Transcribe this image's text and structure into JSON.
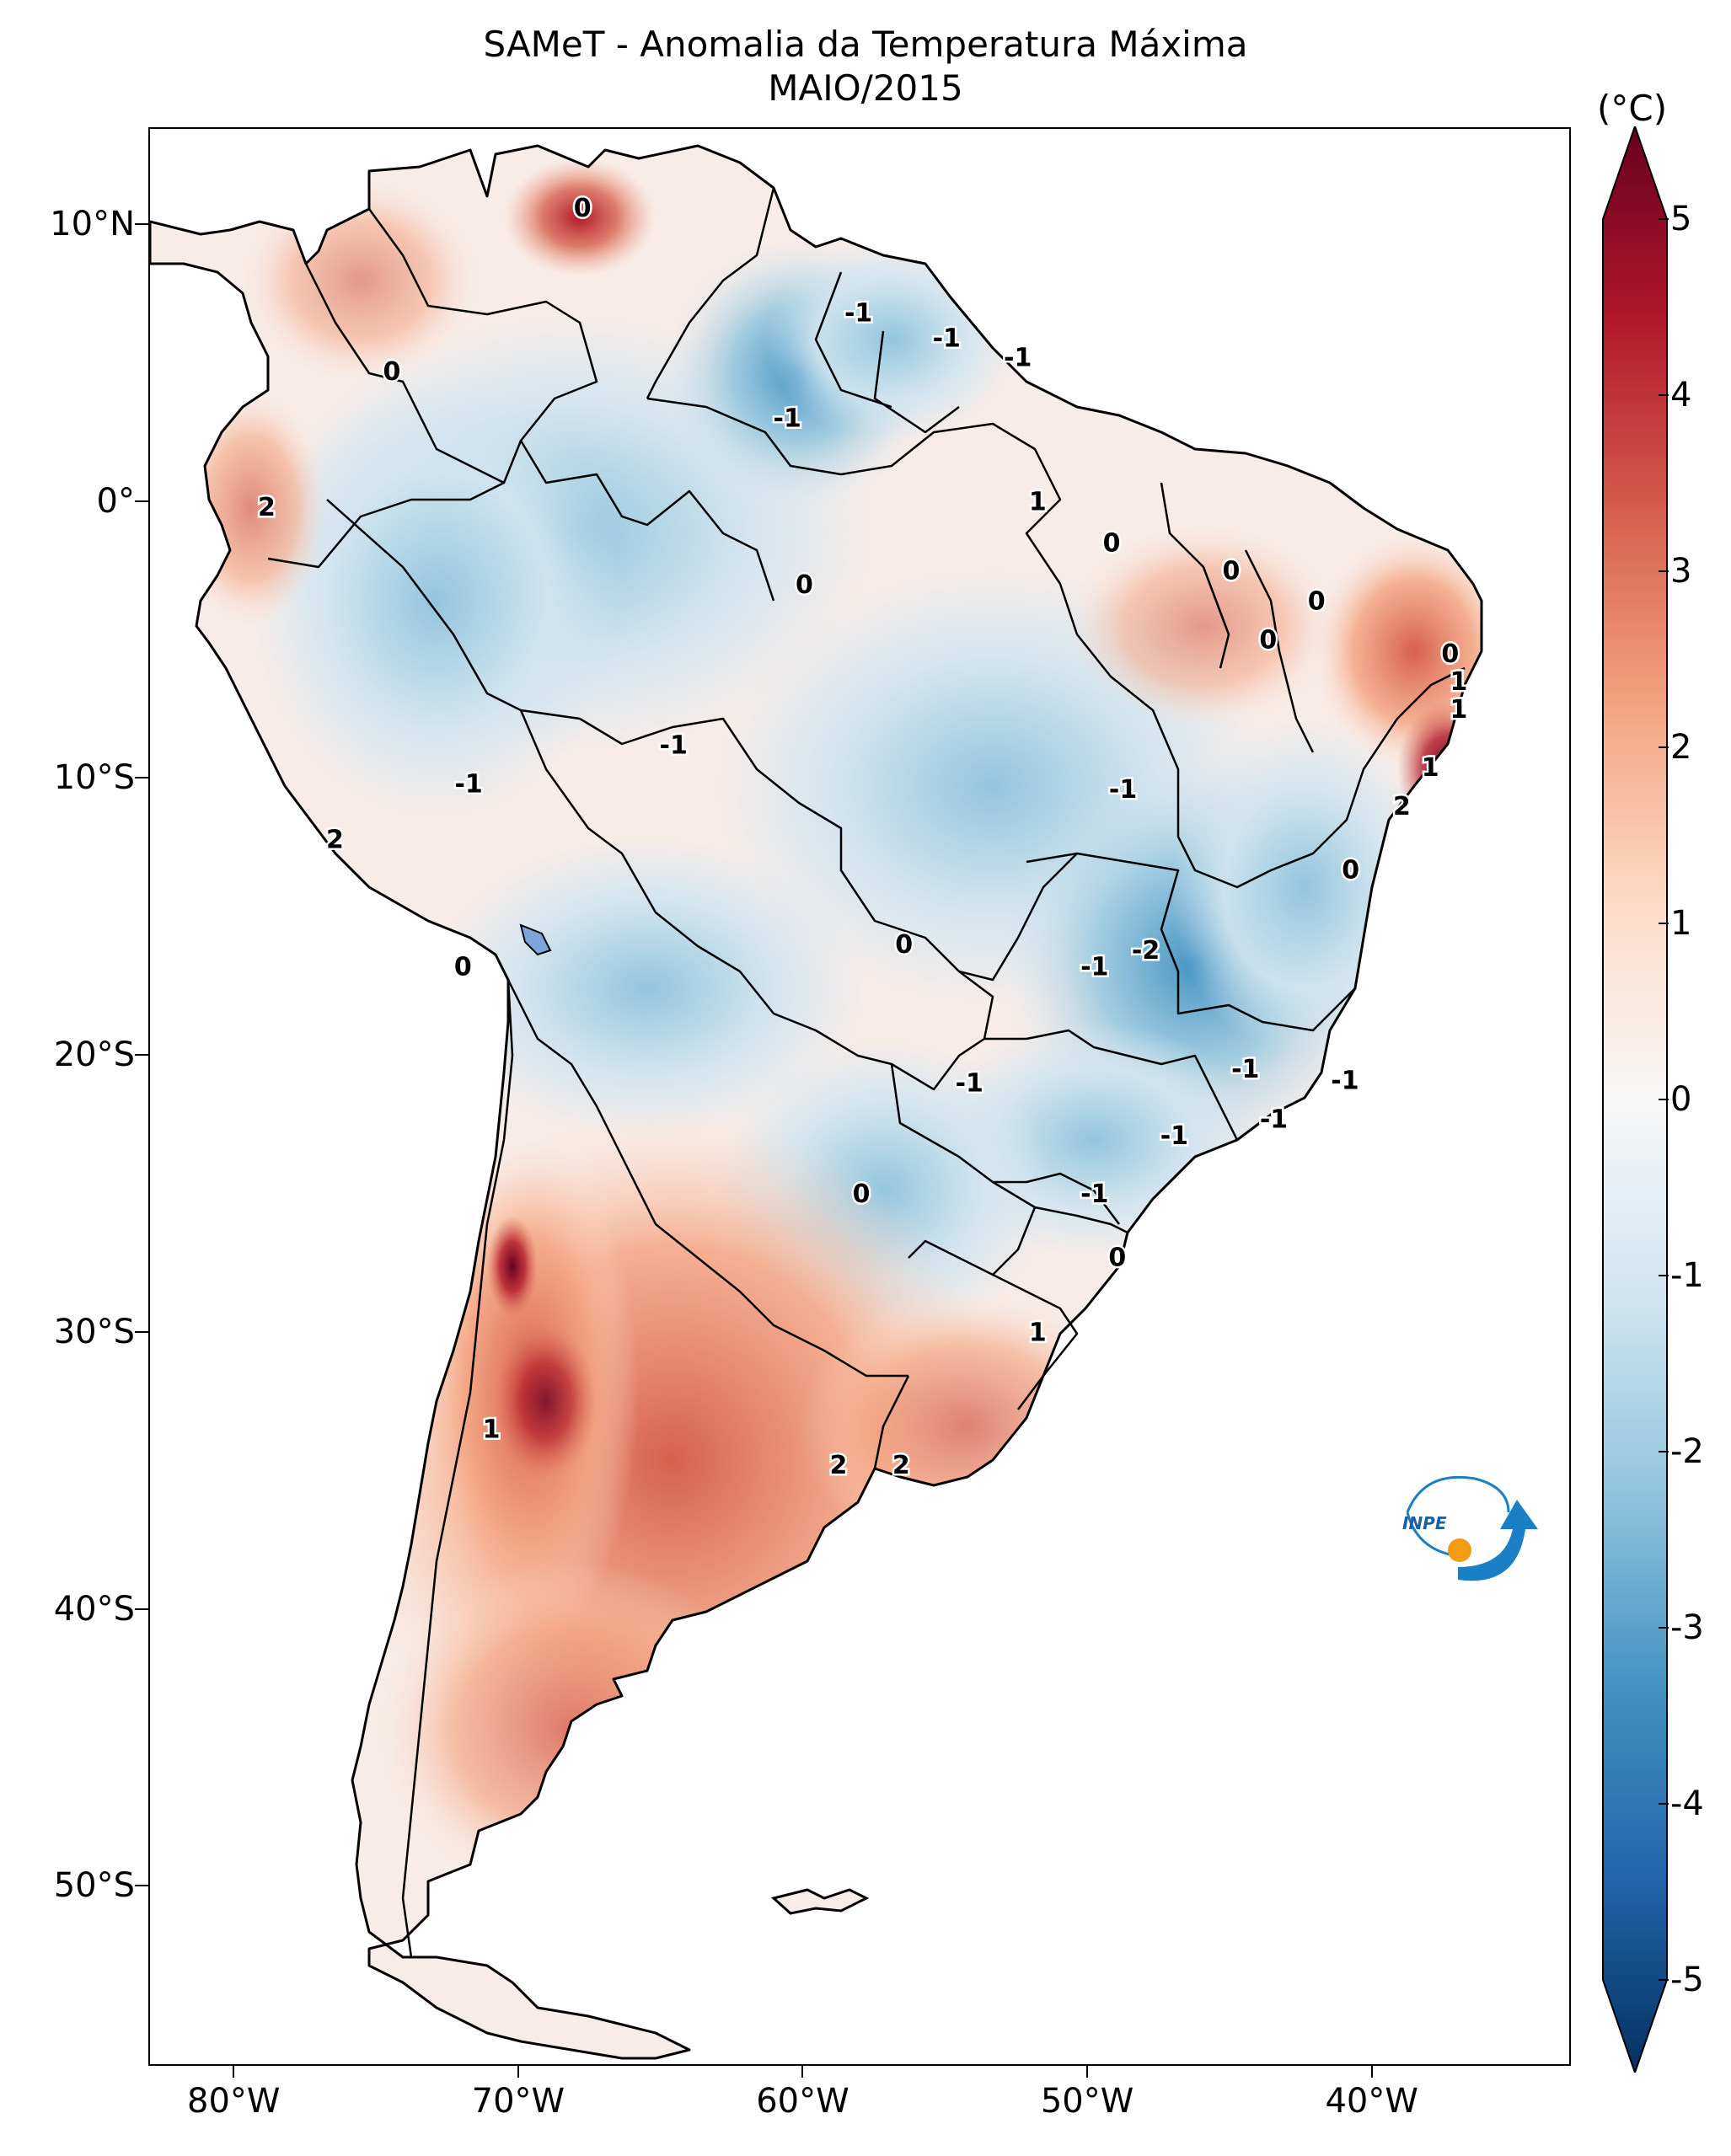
{
  "title": {
    "line1": "SAMeT - Anomalia da Temperatura Máxima",
    "line2": "MAIO/2015"
  },
  "axes": {
    "latitude_ticks": [
      "10°N",
      "0°",
      "10°S",
      "20°S",
      "30°S",
      "40°S",
      "50°S"
    ],
    "longitude_ticks": [
      "80°W",
      "70°W",
      "60°W",
      "50°W",
      "40°W"
    ],
    "lat_values": [
      10,
      0,
      -10,
      -20,
      -30,
      -40,
      -50
    ],
    "lon_values": [
      -80,
      -70,
      -60,
      -50,
      -40
    ],
    "extent": {
      "lon_min": -83,
      "lon_max": -33,
      "lat_min": -56.5,
      "lat_max": 13.5
    }
  },
  "colorbar": {
    "unit": "(°C)",
    "ticks": [
      "5",
      "4",
      "3",
      "2",
      "1",
      "0",
      "-1",
      "-2",
      "-3",
      "-4",
      "-5"
    ],
    "tick_values": [
      5,
      4,
      3,
      2,
      1,
      0,
      -1,
      -2,
      -3,
      -4,
      -5
    ],
    "range": [
      -5,
      5
    ],
    "colors": {
      "max": "#67001f",
      "high": "#b2182b",
      "warm": "#d6604d",
      "light_warm": "#f4a582",
      "pale_warm": "#fddbc7",
      "neutral": "#f7f7f7",
      "pale_cool": "#d1e5f0",
      "light_cool": "#92c5de",
      "cool": "#4393c3",
      "low": "#2166ac",
      "min": "#053061"
    }
  },
  "contour_labels": [
    {
      "text": "0",
      "lon": -67.8,
      "lat": 10.6
    },
    {
      "text": "-1",
      "lon": -58.1,
      "lat": 6.8
    },
    {
      "text": "-1",
      "lon": -55.0,
      "lat": 5.9
    },
    {
      "text": "-1",
      "lon": -52.5,
      "lat": 5.2
    },
    {
      "text": "0",
      "lon": -74.5,
      "lat": 4.7
    },
    {
      "text": "-1",
      "lon": -60.6,
      "lat": 3.0
    },
    {
      "text": "2",
      "lon": -78.9,
      "lat": -0.2
    },
    {
      "text": "1",
      "lon": -51.8,
      "lat": 0.0
    },
    {
      "text": "0",
      "lon": -49.2,
      "lat": -1.5
    },
    {
      "text": "0",
      "lon": -60.0,
      "lat": -3.0
    },
    {
      "text": "0",
      "lon": -45.0,
      "lat": -2.5
    },
    {
      "text": "0",
      "lon": -42.0,
      "lat": -3.6
    },
    {
      "text": "0",
      "lon": -43.7,
      "lat": -5.0
    },
    {
      "text": "0",
      "lon": -37.3,
      "lat": -5.5
    },
    {
      "text": "1",
      "lon": -37.0,
      "lat": -6.5
    },
    {
      "text": "1",
      "lon": -37.0,
      "lat": -7.5
    },
    {
      "text": "1",
      "lon": -38.0,
      "lat": -9.6
    },
    {
      "text": "-1",
      "lon": -64.6,
      "lat": -8.8
    },
    {
      "text": "-1",
      "lon": -71.8,
      "lat": -10.2
    },
    {
      "text": "-1",
      "lon": -48.8,
      "lat": -10.4
    },
    {
      "text": "2",
      "lon": -39.0,
      "lat": -11.0
    },
    {
      "text": "2",
      "lon": -76.5,
      "lat": -12.2
    },
    {
      "text": "0",
      "lon": -40.8,
      "lat": -13.3
    },
    {
      "text": "0",
      "lon": -56.5,
      "lat": -16.0
    },
    {
      "text": "-2",
      "lon": -48.0,
      "lat": -16.2
    },
    {
      "text": "-1",
      "lon": -49.8,
      "lat": -16.8
    },
    {
      "text": "0",
      "lon": -72.0,
      "lat": -16.8
    },
    {
      "text": "-1",
      "lon": -54.2,
      "lat": -21.0
    },
    {
      "text": "-1",
      "lon": -44.5,
      "lat": -20.5
    },
    {
      "text": "-1",
      "lon": -41.0,
      "lat": -20.9
    },
    {
      "text": "-1",
      "lon": -47.0,
      "lat": -22.9
    },
    {
      "text": "-1",
      "lon": -43.5,
      "lat": -22.3
    },
    {
      "text": "0",
      "lon": -58.0,
      "lat": -25.0
    },
    {
      "text": "-1",
      "lon": -49.8,
      "lat": -25.0
    },
    {
      "text": "0",
      "lon": -49.0,
      "lat": -27.3
    },
    {
      "text": "1",
      "lon": -51.8,
      "lat": -30.0
    },
    {
      "text": "1",
      "lon": -71.0,
      "lat": -33.5
    },
    {
      "text": "2",
      "lon": -58.8,
      "lat": -34.8
    },
    {
      "text": "2",
      "lon": -56.6,
      "lat": -34.8
    }
  ]
}
